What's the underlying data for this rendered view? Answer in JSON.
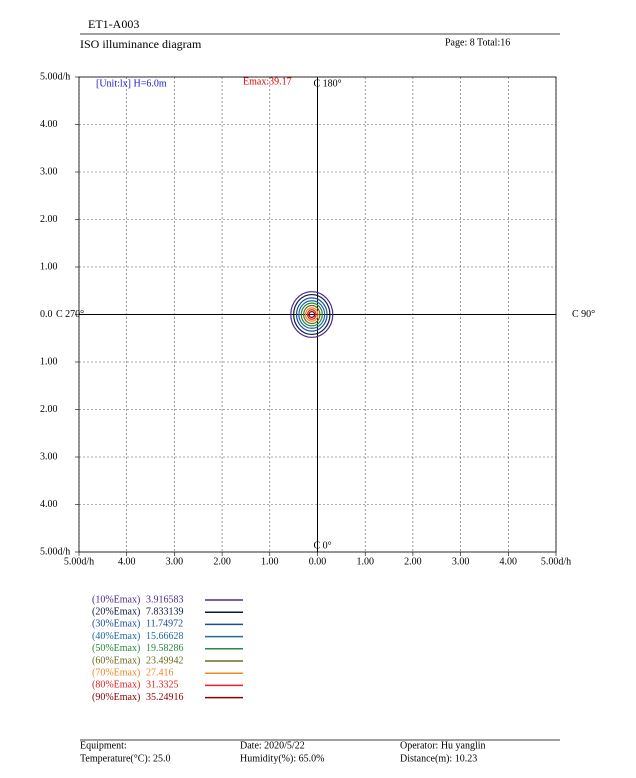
{
  "header": {
    "code": "ET1-A003",
    "title": "ISO illuminance diagram",
    "page": "Page: 8  Total:16"
  },
  "chart_data": {
    "type": "contour",
    "unit_label": "[Unit:lx]  H=6.0m",
    "emax_label": "Emax:39.17",
    "c_labels": {
      "top": "C 180°",
      "right": "C 90°",
      "bottom": "C 0°",
      "left": "C 270°"
    },
    "xlim": [
      -5,
      5
    ],
    "ylim": [
      -5,
      5
    ],
    "xticks": [
      {
        "value": -5,
        "label": "5.00d/h"
      },
      {
        "value": -4,
        "label": "4.00"
      },
      {
        "value": -3,
        "label": "3.00"
      },
      {
        "value": -2,
        "label": "2.00"
      },
      {
        "value": -1,
        "label": "1.00"
      },
      {
        "value": 0,
        "label": "0.00"
      },
      {
        "value": 1,
        "label": "1.00"
      },
      {
        "value": 2,
        "label": "2.00"
      },
      {
        "value": 3,
        "label": "3.00"
      },
      {
        "value": 4,
        "label": "4.00"
      },
      {
        "value": 5,
        "label": "5.00d/h"
      }
    ],
    "yticks": [
      {
        "value": 5,
        "label": "5.00d/h"
      },
      {
        "value": 4,
        "label": "4.00"
      },
      {
        "value": 3,
        "label": "3.00"
      },
      {
        "value": 2,
        "label": "2.00"
      },
      {
        "value": 1,
        "label": "1.00"
      },
      {
        "value": 0,
        "label": "0.0"
      },
      {
        "value": -1,
        "label": "1.00"
      },
      {
        "value": -2,
        "label": "2.00"
      },
      {
        "value": -3,
        "label": "3.00"
      },
      {
        "value": -4,
        "label": "4.00"
      },
      {
        "value": -5,
        "label": "5.00d/h"
      }
    ],
    "grid": true,
    "center": [
      -0.12,
      0
    ],
    "series": [
      {
        "name": "(10%Emax)",
        "level": 3.916583,
        "color": "#4b2a8c",
        "rx": 0.44,
        "ry": 0.48
      },
      {
        "name": "(20%Emax)",
        "level": 7.833139,
        "color": "#0a1a3a",
        "rx": 0.38,
        "ry": 0.42
      },
      {
        "name": "(30%Emax)",
        "level": 11.74972,
        "color": "#1a4b9c",
        "rx": 0.32,
        "ry": 0.35
      },
      {
        "name": "(40%Emax)",
        "level": 15.66628,
        "color": "#1f6aa0",
        "rx": 0.27,
        "ry": 0.29
      },
      {
        "name": "(50%Emax)",
        "level": 19.58286,
        "color": "#2a8a3a",
        "rx": 0.22,
        "ry": 0.24
      },
      {
        "name": "(60%Emax)",
        "level": 23.49942,
        "color": "#6b6b20",
        "rx": 0.17,
        "ry": 0.19
      },
      {
        "name": "(70%Emax)",
        "level": 27.416,
        "color": "#e88a2a",
        "rx": 0.13,
        "ry": 0.14
      },
      {
        "name": "(80%Emax)",
        "level": 31.3325,
        "color": "#e82020",
        "rx": 0.09,
        "ry": 0.1
      },
      {
        "name": "(90%Emax)",
        "level": 35.24916,
        "color": "#8b0000",
        "rx": 0.06,
        "ry": 0.06
      }
    ]
  },
  "footer": {
    "equipment": "Equipment:",
    "date": "Date: 2020/5/22",
    "operator": "Operator: Hu yanglin",
    "temperature": "Temperature(°C): 25.0",
    "humidity": "Humidity(%): 65.0%",
    "distance": "Distance(m): 10.23"
  }
}
